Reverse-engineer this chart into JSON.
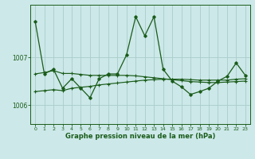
{
  "title": "Graphe pression niveau de la mer (hPa)",
  "background_color": "#cce8e8",
  "grid_color": "#aacccc",
  "line_color": "#1a5c1a",
  "xlim": [
    -0.5,
    23.5
  ],
  "ylim": [
    1005.6,
    1008.1
  ],
  "ytick_positions": [
    1006,
    1007
  ],
  "ytick_labels": [
    "1006",
    "1007"
  ],
  "xticks": [
    0,
    1,
    2,
    3,
    4,
    5,
    6,
    7,
    8,
    9,
    10,
    11,
    12,
    13,
    14,
    15,
    16,
    17,
    18,
    19,
    20,
    21,
    22,
    23
  ],
  "series_main": [
    1007.75,
    1006.65,
    1006.75,
    1006.35,
    1006.55,
    1006.35,
    1006.15,
    1006.55,
    1006.65,
    1006.65,
    1007.05,
    1007.85,
    1007.45,
    1007.85,
    1006.75,
    1006.5,
    1006.38,
    1006.22,
    1006.28,
    1006.35,
    1006.5,
    1006.6,
    1006.88,
    1006.62
  ],
  "series_trend_down": [
    1006.65,
    1006.68,
    1006.72,
    1006.66,
    1006.66,
    1006.64,
    1006.62,
    1006.62,
    1006.62,
    1006.62,
    1006.62,
    1006.61,
    1006.59,
    1006.57,
    1006.55,
    1006.53,
    1006.51,
    1006.49,
    1006.48,
    1006.47,
    1006.47,
    1006.48,
    1006.49,
    1006.5
  ],
  "series_trend_up": [
    1006.28,
    1006.3,
    1006.32,
    1006.3,
    1006.35,
    1006.37,
    1006.39,
    1006.42,
    1006.44,
    1006.46,
    1006.48,
    1006.5,
    1006.52,
    1006.53,
    1006.54,
    1006.54,
    1006.54,
    1006.53,
    1006.52,
    1006.52,
    1006.52,
    1006.52,
    1006.54,
    1006.55
  ]
}
